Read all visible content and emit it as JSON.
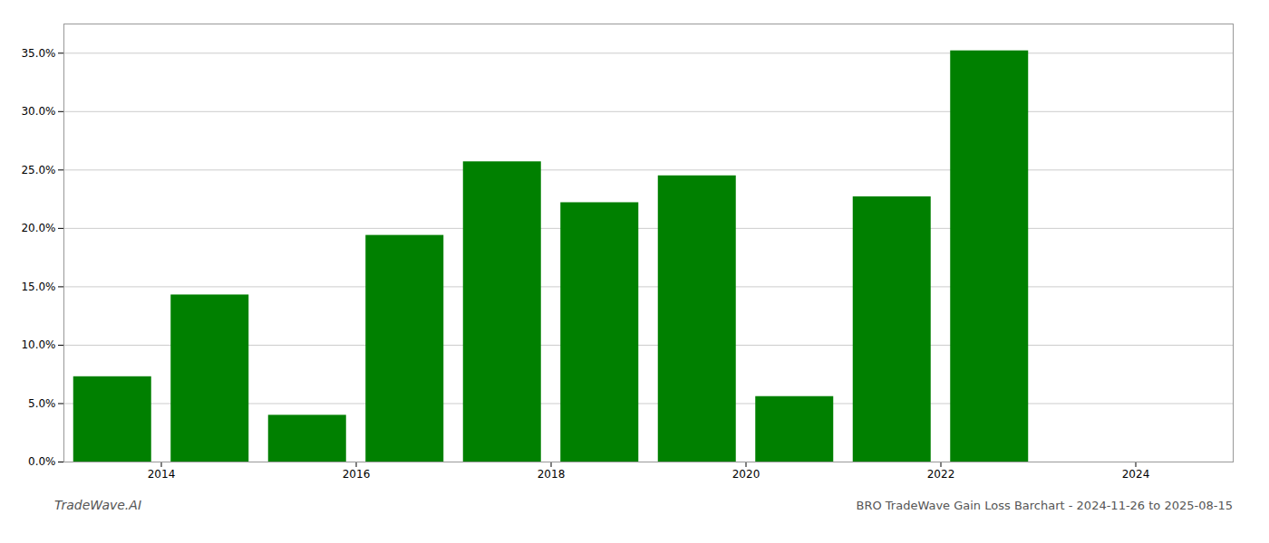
{
  "chart_data": {
    "type": "bar",
    "title": "BRO TradeWave Gain Loss Barchart - 2024-11-26 to 2025-08-15",
    "annotations": [
      "TradeWave.AI"
    ],
    "x": [
      2013.5,
      2014.5,
      2015.5,
      2016.5,
      2017.5,
      2018.5,
      2019.5,
      2020.5,
      2021.5,
      2022.5
    ],
    "values": [
      0.073,
      0.143,
      0.04,
      0.194,
      0.257,
      0.222,
      0.245,
      0.056,
      0.227,
      0.352
    ],
    "color": "#008000",
    "xlim": [
      2013.0,
      2025.0
    ],
    "xticks": [
      2014,
      2016,
      2018,
      2020,
      2022,
      2024
    ],
    "ylim": [
      0,
      0.375
    ],
    "yticks": [
      {
        "value": 0.0,
        "label": "0.0%"
      },
      {
        "value": 0.05,
        "label": "5.0%"
      },
      {
        "value": 0.1,
        "label": "10.0%"
      },
      {
        "value": 0.15,
        "label": "15.0%"
      },
      {
        "value": 0.2,
        "label": "20.0%"
      },
      {
        "value": 0.25,
        "label": "25.0%"
      },
      {
        "value": 0.3,
        "label": "30.0%"
      },
      {
        "value": 0.35,
        "label": "35.0%"
      }
    ],
    "grid": true
  }
}
